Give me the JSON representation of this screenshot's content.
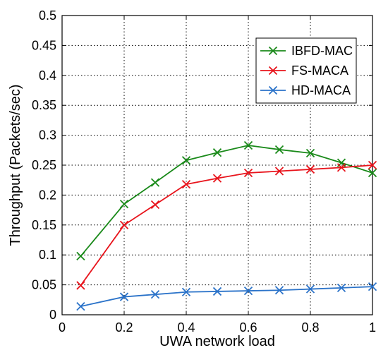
{
  "chart_data": {
    "type": "line",
    "xlabel": "UWA network load",
    "ylabel": "Throughput (Packets/sec)",
    "xlim": [
      0,
      1
    ],
    "ylim": [
      0,
      0.5
    ],
    "xticks": [
      0,
      0.2,
      0.4,
      0.6,
      0.8,
      1
    ],
    "xtick_labels": [
      "0",
      "0.2",
      "0.4",
      "0.6",
      "0.8",
      "1"
    ],
    "yticks": [
      0,
      0.05,
      0.1,
      0.15,
      0.2,
      0.25,
      0.3,
      0.35,
      0.4,
      0.45,
      0.5
    ],
    "ytick_labels": [
      "0",
      "0.05",
      "0.1",
      "0.15",
      "0.2",
      "0.25",
      "0.3",
      "0.35",
      "0.4",
      "0.45",
      "0.5"
    ],
    "grid": true,
    "grid_style": "dotted",
    "legend_position": "top-right",
    "marker": "x",
    "series": [
      {
        "name": "IBFD-MAC",
        "color": "#1a8a1a",
        "x": [
          0.06,
          0.2,
          0.3,
          0.4,
          0.5,
          0.6,
          0.7,
          0.8,
          0.9,
          1.0
        ],
        "y": [
          0.098,
          0.185,
          0.221,
          0.258,
          0.271,
          0.283,
          0.276,
          0.27,
          0.254,
          0.237
        ]
      },
      {
        "name": "FS-MACA",
        "color": "#e8141c",
        "x": [
          0.06,
          0.2,
          0.3,
          0.4,
          0.5,
          0.6,
          0.7,
          0.8,
          0.9,
          1.0
        ],
        "y": [
          0.049,
          0.15,
          0.184,
          0.218,
          0.228,
          0.237,
          0.24,
          0.243,
          0.246,
          0.25
        ]
      },
      {
        "name": "HD-MACA",
        "color": "#2b73c9",
        "x": [
          0.06,
          0.2,
          0.3,
          0.4,
          0.5,
          0.6,
          0.7,
          0.8,
          0.9,
          1.0
        ],
        "y": [
          0.014,
          0.03,
          0.034,
          0.038,
          0.039,
          0.04,
          0.041,
          0.043,
          0.045,
          0.047
        ]
      }
    ]
  }
}
